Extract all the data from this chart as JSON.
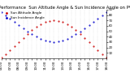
{
  "title": "Solar PV/Inverter Performance  Sun Altitude Angle & Sun Incidence Angle on PV Panels",
  "red_label": "Sun Altitude Angle",
  "blue_label": "Sun Incidence Angle",
  "background_color": "#ffffff",
  "grid_color": "#aaaaaa",
  "red_color": "#cc0000",
  "blue_color": "#0000cc",
  "ylim": [
    0,
    90
  ],
  "yticks_right": [
    10,
    20,
    30,
    40,
    50,
    60,
    70,
    80,
    90
  ],
  "time_hours": [
    6.0,
    6.5,
    7.0,
    7.5,
    8.0,
    8.5,
    9.0,
    9.5,
    10.0,
    10.5,
    11.0,
    11.5,
    12.0,
    12.5,
    13.0,
    13.5,
    14.0,
    14.5,
    15.0,
    15.5,
    16.0,
    16.5,
    17.0,
    17.5,
    18.0
  ],
  "altitude_angles": [
    2,
    8,
    15,
    22,
    30,
    38,
    45,
    52,
    58,
    63,
    67,
    69,
    70,
    69,
    67,
    63,
    58,
    52,
    45,
    38,
    30,
    22,
    15,
    8,
    2
  ],
  "incidence_angles": [
    85,
    80,
    74,
    68,
    62,
    56,
    50,
    45,
    40,
    36,
    33,
    31,
    30,
    31,
    33,
    36,
    40,
    45,
    50,
    56,
    62,
    68,
    74,
    80,
    85
  ],
  "xtick_labels": [
    "06:00",
    "",
    "07:00",
    "",
    "08:00",
    "",
    "09:00",
    "",
    "10:00",
    "",
    "11:00",
    "",
    "12:00",
    "",
    "13:00",
    "",
    "14:00",
    "",
    "15:00",
    "",
    "16:00",
    "",
    "17:00",
    "",
    "18:00"
  ],
  "title_fontsize": 3.8,
  "tick_fontsize": 2.8,
  "legend_fontsize": 3.0,
  "markersize": 1.0
}
